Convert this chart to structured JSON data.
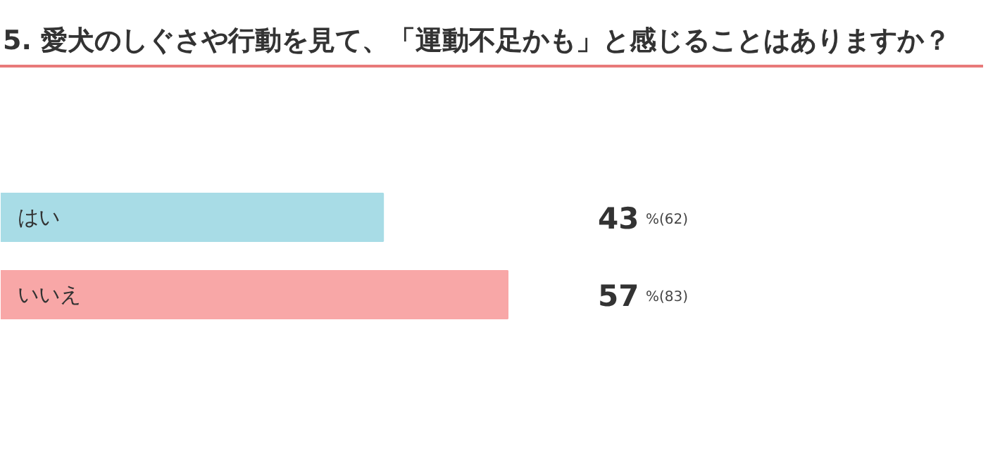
{
  "chart_data": {
    "type": "bar",
    "orientation": "horizontal",
    "title": "5. 愛犬のしぐさや行動を見て、「運動不足かも」と感じることはありますか？",
    "categories": [
      "はい",
      "いいえ"
    ],
    "values": [
      43,
      57
    ],
    "colors": [
      "#a8dce6",
      "#f8a7a7"
    ],
    "value_labels": [
      "43%(62)",
      "57%(83)"
    ]
  }
}
